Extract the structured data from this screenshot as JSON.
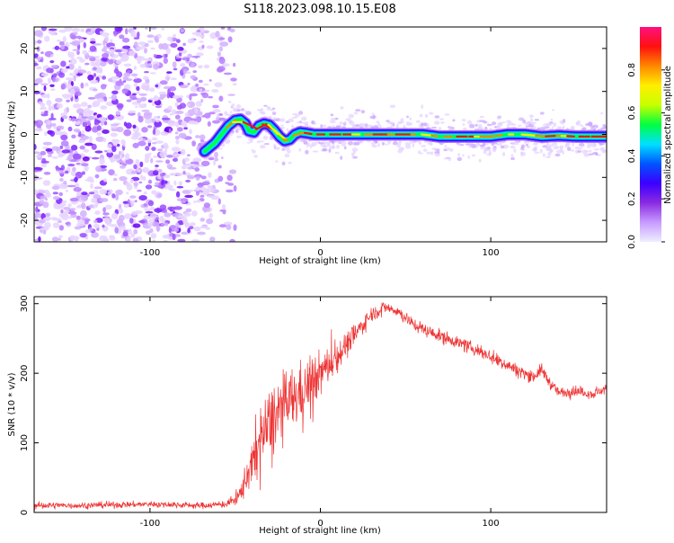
{
  "figure": {
    "title": "S118.2023.098.10.15.E08"
  },
  "chart_data": [
    {
      "type": "heatmap",
      "name": "spectrogram",
      "xlabel": "Height of straight line (km)",
      "ylabel": "Frequency (Hz)",
      "xlim": [
        -168,
        168
      ],
      "ylim": [
        -25,
        25
      ],
      "xticks": [
        -100,
        0,
        100
      ],
      "yticks": [
        -20,
        -10,
        0,
        10,
        20
      ],
      "grid": false,
      "colorbar": {
        "label": "Normalized spectral amplitude",
        "range": [
          0,
          1
        ],
        "ticks": [
          0.0,
          0.2,
          0.4,
          0.6,
          0.8
        ],
        "tick_labels": [
          "0.0",
          "0.2",
          "0.4",
          "0.6",
          "0.8"
        ],
        "colors": [
          "#eeeeff",
          "#c79bff",
          "#8a2be2",
          "#3b00ff",
          "#0055ff",
          "#00e0ff",
          "#00ff40",
          "#c8ff00",
          "#ffee00",
          "#ff8800",
          "#ff1010",
          "#ff1080"
        ]
      },
      "noise_region": {
        "x": [
          -168,
          -55
        ],
        "y": [
          -25,
          25
        ]
      },
      "ridge": {
        "x": [
          -68,
          -62,
          -58,
          -54,
          -50,
          -47,
          -44,
          -42,
          -39,
          -36,
          -33,
          -30,
          -27,
          -24,
          -21,
          -18,
          -15,
          -12,
          -8,
          -4,
          0,
          10,
          20,
          30,
          40,
          50,
          60,
          70,
          80,
          90,
          100,
          110,
          120,
          130,
          140,
          150,
          160,
          168
        ],
        "y": [
          -4,
          -2,
          0,
          2,
          3.3,
          3.5,
          2.5,
          0.8,
          0.5,
          2,
          2.5,
          2.2,
          1,
          -0.5,
          -1.5,
          -1.2,
          0,
          0.5,
          0.3,
          0,
          0,
          0,
          0,
          0,
          0,
          0,
          0,
          -0.5,
          -0.5,
          -0.5,
          -0.5,
          0,
          0,
          -0.5,
          -0.3,
          -0.5,
          -0.5,
          -0.5
        ]
      }
    },
    {
      "type": "line",
      "name": "snr",
      "xlabel": "Height of straight line (km)",
      "ylabel": "SNR (10 * v/v)",
      "xlim": [
        -168,
        168
      ],
      "ylim": [
        0,
        310
      ],
      "xticks": [
        -100,
        0,
        100
      ],
      "yticks": [
        0,
        100,
        200,
        300
      ],
      "grid": false,
      "color": "#ee3333",
      "envelope": {
        "x": [
          -168,
          -140,
          -100,
          -70,
          -55,
          -48,
          -42,
          -35,
          -28,
          -20,
          -10,
          0,
          10,
          20,
          30,
          38,
          45,
          55,
          65,
          75,
          85,
          95,
          105,
          115,
          125,
          130,
          135,
          140,
          150,
          160,
          168
        ],
        "y": [
          10,
          10,
          12,
          10,
          12,
          22,
          60,
          105,
          135,
          155,
          175,
          200,
          225,
          255,
          285,
          295,
          290,
          270,
          258,
          250,
          240,
          230,
          218,
          205,
          195,
          205,
          185,
          172,
          175,
          170,
          178
        ],
        "noise": [
          6,
          5,
          5,
          5,
          6,
          12,
          35,
          55,
          60,
          55,
          45,
          35,
          25,
          18,
          12,
          10,
          10,
          10,
          10,
          10,
          10,
          10,
          10,
          10,
          10,
          10,
          9,
          8,
          8,
          8,
          8
        ]
      }
    }
  ]
}
